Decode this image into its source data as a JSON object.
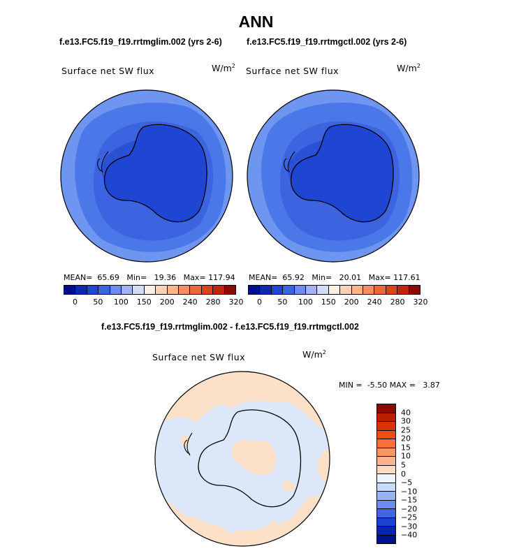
{
  "title": "ANN",
  "panels": {
    "left": {
      "case": "f.e13.FC5.f19_f19.rrtmglim.002 (yrs 2-6)",
      "label": "Surface net SW flux",
      "units_base": "W/m",
      "units_exp": "2",
      "mean_label": "MEAN=",
      "mean": "65.69",
      "min_label": "Min=",
      "min": "19.36",
      "max_label": "Max=",
      "max": "117.94"
    },
    "right": {
      "case": "f.e13.FC5.f19_f19.rrtmgctl.002 (yrs 2-6)",
      "label": "Surface net SW flux",
      "units_base": "W/m",
      "units_exp": "2",
      "mean_label": "MEAN=",
      "mean": "65.92",
      "min_label": "Min=",
      "min": "20.01",
      "max_label": "Max=",
      "max": "117.61"
    },
    "diff": {
      "case": "f.e13.FC5.f19_f19.rrtmglim.002 - f.e13.FC5.f19_f19.rrtmgctl.002",
      "label": "Surface net SW flux",
      "units_base": "W/m",
      "units_exp": "2",
      "min_label": "MIN =",
      "min": "-5.50",
      "max_label": "MAX =",
      "max": "3.87"
    }
  },
  "colorbar_top": {
    "labels": [
      "0",
      "50",
      "100",
      "150",
      "200",
      "240",
      "280",
      "320"
    ],
    "colors": [
      "#000c8a",
      "#0a28b4",
      "#1e46d2",
      "#3c64e1",
      "#6e8cf0",
      "#a0b4f5",
      "#d2dcfa",
      "#ffeee2",
      "#fdd2b4",
      "#fbb48c",
      "#f88c64",
      "#f0643c",
      "#e1411e",
      "#c3230f",
      "#8c0a00"
    ]
  },
  "colorbar_diff": {
    "labels": [
      "40",
      "30",
      "25",
      "20",
      "15",
      "10",
      "5",
      "0",
      "−5",
      "−10",
      "−15",
      "−20",
      "−25",
      "−30",
      "−40"
    ],
    "colors": [
      "#8c0a00",
      "#be1e00",
      "#dc3200",
      "#f04b14",
      "#fa6e3c",
      "#fa9664",
      "#fcb490",
      "#fcdcc0",
      "#eef4fc",
      "#c8dcfa",
      "#96b4f5",
      "#6e8cf0",
      "#4164e6",
      "#1e41d2",
      "#0a23b4",
      "#000f8c"
    ]
  },
  "map_colors": {
    "ocean_far": "#6e96f0",
    "ocean_mid": "#4a78e8",
    "ocean_near": "#3c64e1",
    "ice": "#2a50d4",
    "continent": "#1e46d2",
    "diff_blue": "#dce8fa",
    "diff_peach": "#fde0c8"
  }
}
